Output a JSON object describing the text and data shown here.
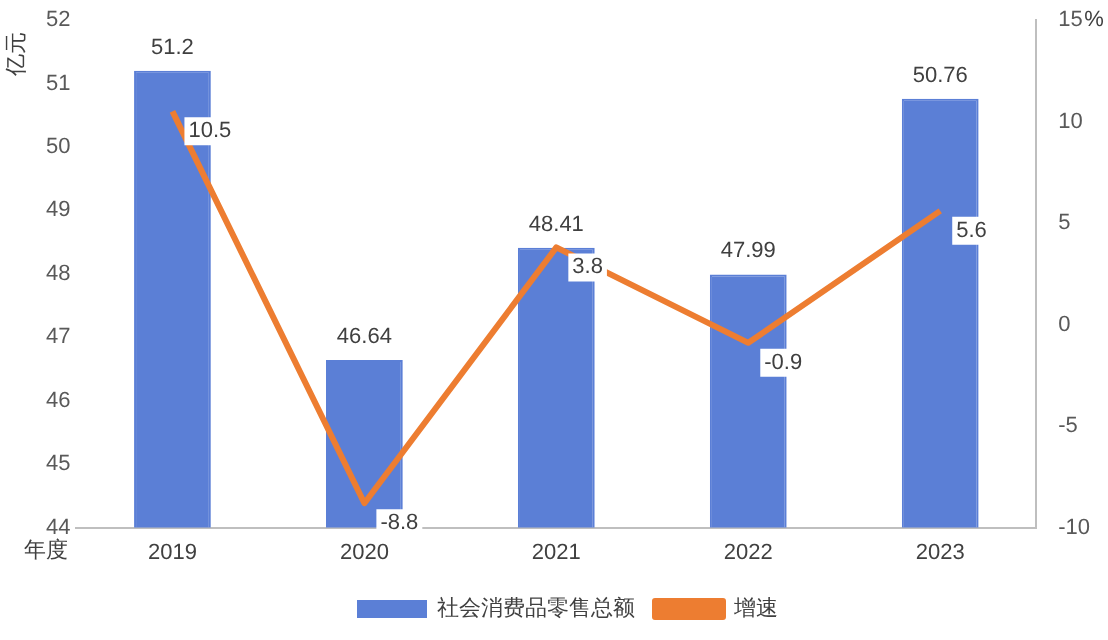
{
  "chart_data": {
    "type": "bar",
    "categories": [
      "2019",
      "2020",
      "2021",
      "2022",
      "2023"
    ],
    "series": [
      {
        "name": "社会消费品零售总额",
        "color": "#5b7fd6",
        "values": [
          51.2,
          46.64,
          48.41,
          47.99,
          50.76
        ]
      },
      {
        "name": "增速",
        "type": "line",
        "axis": "y2",
        "color": "#ed7d31",
        "values": [
          10.5,
          -8.8,
          3.8,
          -0.9,
          5.6
        ]
      }
    ],
    "ylabel": "亿元",
    "xlabel": "年度",
    "y2label": "%",
    "ylim": [
      44,
      52
    ],
    "yticks": [
      44,
      45,
      46,
      47,
      48,
      49,
      50,
      51,
      52
    ],
    "y2lim": [
      -10,
      15
    ],
    "y2ticks": [
      -10,
      -5,
      0,
      5,
      10,
      15
    ],
    "data_labels": true,
    "legend": "bottom",
    "grid": false,
    "marker": "none"
  }
}
